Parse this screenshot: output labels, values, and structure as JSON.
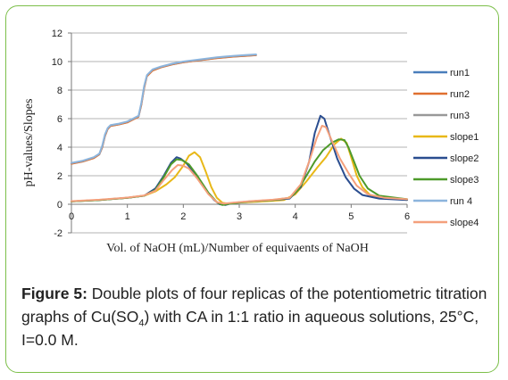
{
  "chart_data": {
    "type": "line",
    "xlabel": "Vol. of NaOH (mL)/Number of equivaents of NaOH",
    "ylabel": "pH-values/Slopes",
    "xlim": [
      0,
      6
    ],
    "ylim": [
      -2,
      12
    ],
    "xticks": [
      0,
      1,
      2,
      3,
      4,
      5,
      6
    ],
    "yticks": [
      -2,
      0,
      2,
      4,
      6,
      8,
      10,
      12
    ],
    "grid": "horizontal",
    "legend_position": "right",
    "series": [
      {
        "name": "run1",
        "color": "#4a7ebb",
        "width": 2.0,
        "points": [
          [
            0,
            2.85
          ],
          [
            0.2,
            3.0
          ],
          [
            0.4,
            3.25
          ],
          [
            0.5,
            3.5
          ],
          [
            0.55,
            4.0
          ],
          [
            0.6,
            4.8
          ],
          [
            0.65,
            5.3
          ],
          [
            0.7,
            5.5
          ],
          [
            0.85,
            5.6
          ],
          [
            1.0,
            5.75
          ],
          [
            1.1,
            5.95
          ],
          [
            1.2,
            6.15
          ],
          [
            1.25,
            7.0
          ],
          [
            1.3,
            8.2
          ],
          [
            1.35,
            9.0
          ],
          [
            1.45,
            9.4
          ],
          [
            1.6,
            9.6
          ],
          [
            1.8,
            9.8
          ],
          [
            2.0,
            9.95
          ],
          [
            2.3,
            10.1
          ],
          [
            2.6,
            10.25
          ],
          [
            2.9,
            10.35
          ],
          [
            3.1,
            10.4
          ],
          [
            3.3,
            10.45
          ]
        ]
      },
      {
        "name": "run2",
        "color": "#e07030",
        "width": 1.6,
        "points": [
          [
            0,
            2.82
          ],
          [
            0.2,
            2.98
          ],
          [
            0.4,
            3.22
          ],
          [
            0.5,
            3.48
          ],
          [
            0.55,
            3.95
          ],
          [
            0.6,
            4.75
          ],
          [
            0.65,
            5.25
          ],
          [
            0.7,
            5.47
          ],
          [
            0.85,
            5.58
          ],
          [
            1.0,
            5.72
          ],
          [
            1.1,
            5.92
          ],
          [
            1.2,
            6.12
          ],
          [
            1.25,
            6.9
          ],
          [
            1.3,
            8.1
          ],
          [
            1.35,
            8.95
          ],
          [
            1.45,
            9.35
          ],
          [
            1.6,
            9.58
          ],
          [
            1.8,
            9.78
          ],
          [
            2.0,
            9.93
          ],
          [
            2.3,
            10.08
          ],
          [
            2.6,
            10.22
          ],
          [
            2.9,
            10.33
          ],
          [
            3.1,
            10.38
          ],
          [
            3.3,
            10.43
          ]
        ]
      },
      {
        "name": "run3",
        "color": "#999999",
        "width": 1.6,
        "points": [
          [
            0,
            2.88
          ],
          [
            0.2,
            3.02
          ],
          [
            0.4,
            3.28
          ],
          [
            0.5,
            3.52
          ],
          [
            0.55,
            4.05
          ],
          [
            0.6,
            4.85
          ],
          [
            0.65,
            5.32
          ],
          [
            0.7,
            5.52
          ],
          [
            0.85,
            5.62
          ],
          [
            1.0,
            5.78
          ],
          [
            1.1,
            5.97
          ],
          [
            1.2,
            6.17
          ],
          [
            1.25,
            7.05
          ],
          [
            1.3,
            8.25
          ],
          [
            1.35,
            9.02
          ],
          [
            1.45,
            9.42
          ],
          [
            1.6,
            9.62
          ],
          [
            1.8,
            9.82
          ],
          [
            2.0,
            9.97
          ],
          [
            2.3,
            10.12
          ],
          [
            2.6,
            10.27
          ],
          [
            2.9,
            10.37
          ],
          [
            3.1,
            10.42
          ],
          [
            3.3,
            10.47
          ]
        ]
      },
      {
        "name": "slope1",
        "color": "#e8b818",
        "width": 2.0,
        "points": [
          [
            0,
            0.2
          ],
          [
            0.5,
            0.3
          ],
          [
            1.0,
            0.45
          ],
          [
            1.3,
            0.6
          ],
          [
            1.5,
            0.9
          ],
          [
            1.7,
            1.4
          ],
          [
            1.85,
            1.9
          ],
          [
            2.0,
            2.7
          ],
          [
            2.1,
            3.4
          ],
          [
            2.2,
            3.65
          ],
          [
            2.3,
            3.3
          ],
          [
            2.4,
            2.3
          ],
          [
            2.5,
            1.2
          ],
          [
            2.6,
            0.45
          ],
          [
            2.7,
            0.1
          ],
          [
            2.8,
            0.05
          ],
          [
            3.0,
            0.12
          ],
          [
            3.5,
            0.22
          ],
          [
            3.8,
            0.3
          ],
          [
            4.0,
            0.7
          ],
          [
            4.2,
            1.6
          ],
          [
            4.4,
            2.6
          ],
          [
            4.55,
            3.3
          ],
          [
            4.7,
            4.2
          ],
          [
            4.82,
            4.6
          ],
          [
            4.92,
            4.3
          ],
          [
            5.0,
            3.3
          ],
          [
            5.1,
            2.0
          ],
          [
            5.2,
            1.2
          ],
          [
            5.35,
            0.6
          ],
          [
            5.6,
            0.45
          ],
          [
            6.0,
            0.35
          ]
        ]
      },
      {
        "name": "slope2",
        "color": "#2a4d8f",
        "width": 2.0,
        "points": [
          [
            0,
            0.2
          ],
          [
            0.5,
            0.3
          ],
          [
            1.0,
            0.45
          ],
          [
            1.3,
            0.6
          ],
          [
            1.5,
            1.1
          ],
          [
            1.65,
            2.0
          ],
          [
            1.78,
            2.9
          ],
          [
            1.88,
            3.3
          ],
          [
            1.95,
            3.2
          ],
          [
            2.05,
            2.9
          ],
          [
            2.2,
            2.2
          ],
          [
            2.4,
            1.0
          ],
          [
            2.55,
            0.3
          ],
          [
            2.65,
            0.0
          ],
          [
            2.75,
            -0.05
          ],
          [
            2.9,
            0.1
          ],
          [
            3.2,
            0.2
          ],
          [
            3.6,
            0.3
          ],
          [
            3.9,
            0.4
          ],
          [
            4.1,
            1.2
          ],
          [
            4.25,
            3.0
          ],
          [
            4.35,
            5.0
          ],
          [
            4.45,
            6.2
          ],
          [
            4.52,
            6.0
          ],
          [
            4.6,
            5.0
          ],
          [
            4.75,
            3.2
          ],
          [
            4.9,
            1.9
          ],
          [
            5.05,
            1.1
          ],
          [
            5.2,
            0.65
          ],
          [
            5.5,
            0.4
          ],
          [
            6.0,
            0.3
          ]
        ]
      },
      {
        "name": "slope3",
        "color": "#4e9a2a",
        "width": 2.0,
        "points": [
          [
            0,
            0.2
          ],
          [
            0.5,
            0.3
          ],
          [
            1.0,
            0.45
          ],
          [
            1.3,
            0.6
          ],
          [
            1.5,
            1.0
          ],
          [
            1.65,
            1.9
          ],
          [
            1.78,
            2.8
          ],
          [
            1.88,
            3.15
          ],
          [
            1.97,
            3.1
          ],
          [
            2.1,
            2.8
          ],
          [
            2.25,
            2.0
          ],
          [
            2.45,
            0.8
          ],
          [
            2.6,
            0.15
          ],
          [
            2.7,
            -0.05
          ],
          [
            2.85,
            0.05
          ],
          [
            3.2,
            0.2
          ],
          [
            3.6,
            0.3
          ],
          [
            3.9,
            0.45
          ],
          [
            4.05,
            1.0
          ],
          [
            4.2,
            2.0
          ],
          [
            4.35,
            3.0
          ],
          [
            4.5,
            3.8
          ],
          [
            4.65,
            4.3
          ],
          [
            4.78,
            4.55
          ],
          [
            4.88,
            4.5
          ],
          [
            4.95,
            4.0
          ],
          [
            5.05,
            3.0
          ],
          [
            5.15,
            2.0
          ],
          [
            5.3,
            1.1
          ],
          [
            5.5,
            0.6
          ],
          [
            6.0,
            0.35
          ]
        ]
      },
      {
        "name": "run 4",
        "color": "#8cb4dc",
        "width": 2.0,
        "points": [
          [
            0,
            2.9
          ],
          [
            0.2,
            3.05
          ],
          [
            0.4,
            3.3
          ],
          [
            0.5,
            3.55
          ],
          [
            0.55,
            4.1
          ],
          [
            0.6,
            4.9
          ],
          [
            0.65,
            5.35
          ],
          [
            0.7,
            5.55
          ],
          [
            0.85,
            5.65
          ],
          [
            1.0,
            5.8
          ],
          [
            1.1,
            6.0
          ],
          [
            1.2,
            6.2
          ],
          [
            1.25,
            7.1
          ],
          [
            1.3,
            8.3
          ],
          [
            1.35,
            9.05
          ],
          [
            1.45,
            9.45
          ],
          [
            1.6,
            9.65
          ],
          [
            1.8,
            9.85
          ],
          [
            2.0,
            10.0
          ],
          [
            2.3,
            10.15
          ],
          [
            2.6,
            10.3
          ],
          [
            2.9,
            10.4
          ],
          [
            3.1,
            10.45
          ],
          [
            3.3,
            10.5
          ]
        ]
      },
      {
        "name": "slope4",
        "color": "#f4a07c",
        "width": 2.0,
        "points": [
          [
            0,
            0.22
          ],
          [
            0.5,
            0.32
          ],
          [
            1.0,
            0.47
          ],
          [
            1.3,
            0.62
          ],
          [
            1.5,
            0.95
          ],
          [
            1.65,
            1.7
          ],
          [
            1.8,
            2.4
          ],
          [
            1.9,
            2.75
          ],
          [
            2.0,
            2.7
          ],
          [
            2.1,
            2.5
          ],
          [
            2.25,
            1.8
          ],
          [
            2.45,
            0.7
          ],
          [
            2.6,
            0.15
          ],
          [
            2.72,
            0.05
          ],
          [
            2.9,
            0.12
          ],
          [
            3.2,
            0.22
          ],
          [
            3.6,
            0.32
          ],
          [
            3.9,
            0.45
          ],
          [
            4.1,
            1.4
          ],
          [
            4.25,
            3.0
          ],
          [
            4.38,
            4.6
          ],
          [
            4.48,
            5.5
          ],
          [
            4.55,
            5.4
          ],
          [
            4.65,
            4.5
          ],
          [
            4.8,
            3.2
          ],
          [
            4.95,
            2.2
          ],
          [
            5.1,
            1.3
          ],
          [
            5.3,
            0.7
          ],
          [
            5.6,
            0.45
          ],
          [
            6.0,
            0.35
          ]
        ]
      }
    ]
  },
  "caption": {
    "label": "Figure 5:",
    "text_before_sub": " Double plots of four replicas of the potentiometric titration graphs of Cu(SO",
    "sub": "4",
    "text_after_sub": ") with CA in 1:1 ratio   in   aqueous solutions, 25°C, I=0.0 M."
  }
}
